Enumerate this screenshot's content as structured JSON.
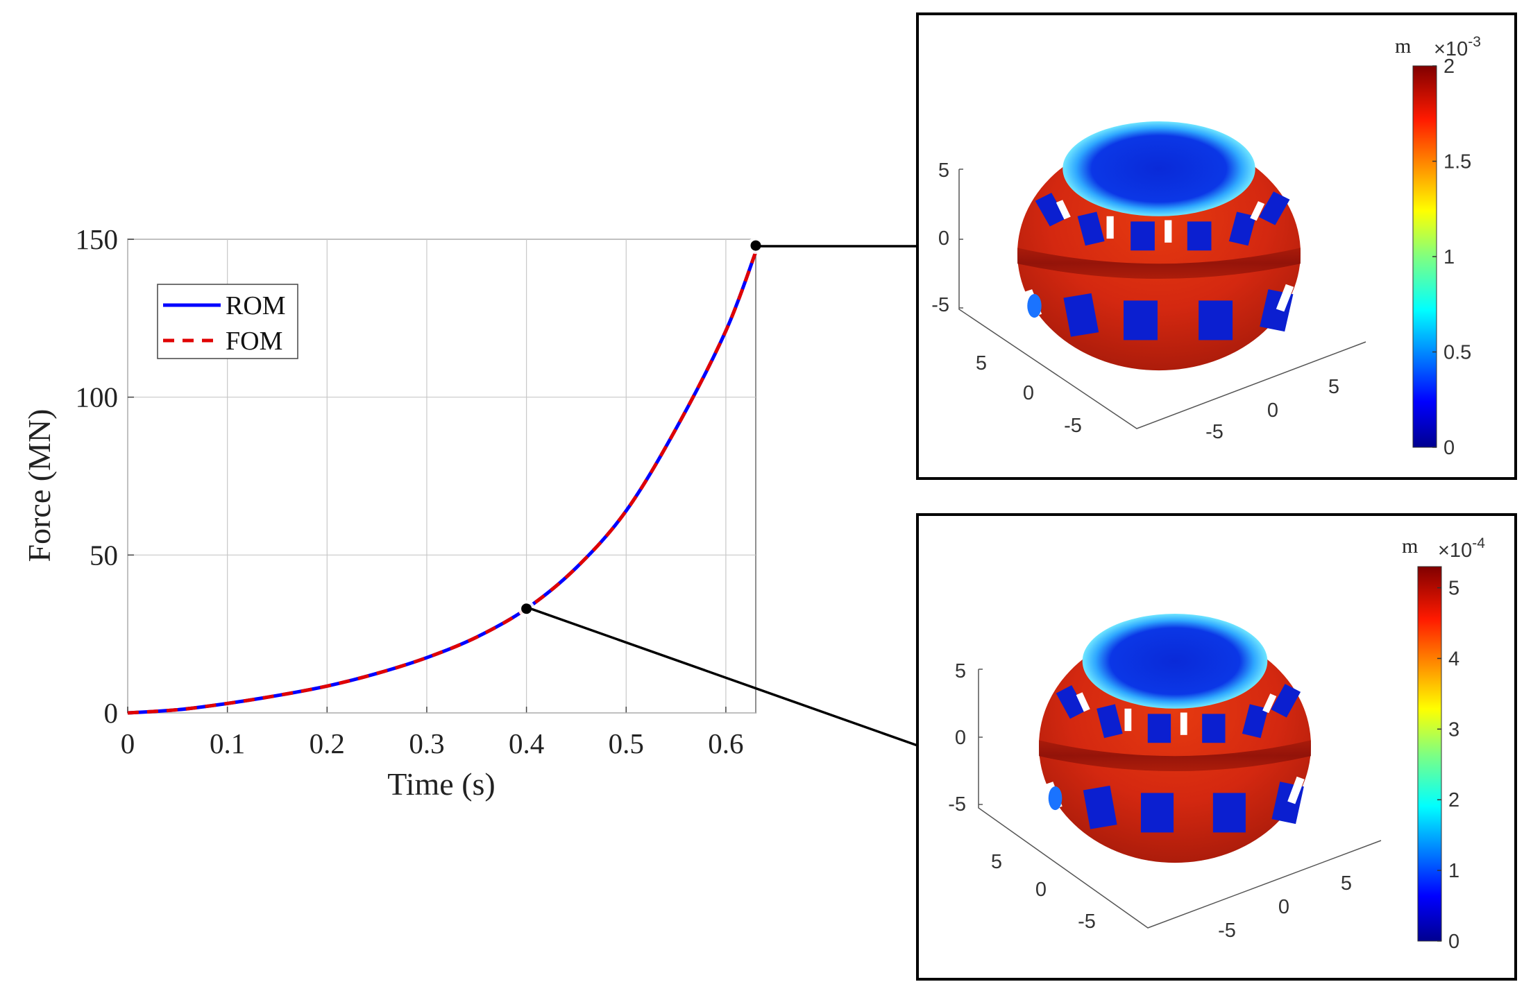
{
  "chart_data": [
    {
      "type": "line",
      "title": "",
      "xlabel": "Time (s)",
      "ylabel": "Force (MN)",
      "xlim": [
        0,
        0.63
      ],
      "ylim": [
        0,
        150
      ],
      "xticks": [
        "0",
        "0.1",
        "0.2",
        "0.3",
        "0.4",
        "0.5",
        "0.6"
      ],
      "yticks": [
        "0",
        "50",
        "100",
        "150"
      ],
      "grid": true,
      "legend": {
        "position": "top-left",
        "entries": [
          "ROM",
          "FOM"
        ]
      },
      "series": [
        {
          "name": "ROM",
          "color": "#0000ff",
          "style": "solid",
          "x": [
            0,
            0.05,
            0.1,
            0.15,
            0.2,
            0.25,
            0.3,
            0.35,
            0.4,
            0.45,
            0.5,
            0.55,
            0.6,
            0.63
          ],
          "y": [
            0,
            1,
            3,
            5.5,
            8.5,
            12.5,
            17.5,
            24,
            33,
            46,
            64,
            90,
            121,
            146
          ]
        },
        {
          "name": "FOM",
          "color": "#e00000",
          "style": "dashed",
          "x": [
            0,
            0.05,
            0.1,
            0.15,
            0.2,
            0.25,
            0.3,
            0.35,
            0.4,
            0.45,
            0.5,
            0.55,
            0.6,
            0.63
          ],
          "y": [
            0,
            1,
            3,
            5.5,
            8.5,
            12.5,
            17.5,
            24,
            33,
            46,
            64,
            90,
            121,
            146
          ]
        }
      ],
      "highlighted_points": [
        {
          "x": 0.63,
          "y": 148
        },
        {
          "x": 0.4,
          "y": 33
        }
      ]
    },
    {
      "type": "heatmap",
      "title": "",
      "axis_ticks_z": [
        "5",
        "0",
        "-5"
      ],
      "axis_ticks_x": [
        "5",
        "0",
        "-5"
      ],
      "axis_ticks_y": [
        "-5",
        "0",
        "5"
      ],
      "colorbar": {
        "unit": "m",
        "multiplier": "×10",
        "exponent": "-3",
        "ticks": [
          "2",
          "1.5",
          "1",
          "0.5",
          "0"
        ],
        "range": [
          0,
          0.002
        ]
      }
    },
    {
      "type": "heatmap",
      "title": "",
      "axis_ticks_z": [
        "5",
        "0",
        "-5"
      ],
      "axis_ticks_x": [
        "5",
        "0",
        "-5"
      ],
      "axis_ticks_y": [
        "-5",
        "0",
        "5"
      ],
      "colorbar": {
        "unit": "m",
        "multiplier": "×10",
        "exponent": "-4",
        "ticks": [
          "5",
          "4",
          "3",
          "2",
          "1",
          "0"
        ],
        "range": [
          0,
          0.00053
        ]
      }
    }
  ]
}
